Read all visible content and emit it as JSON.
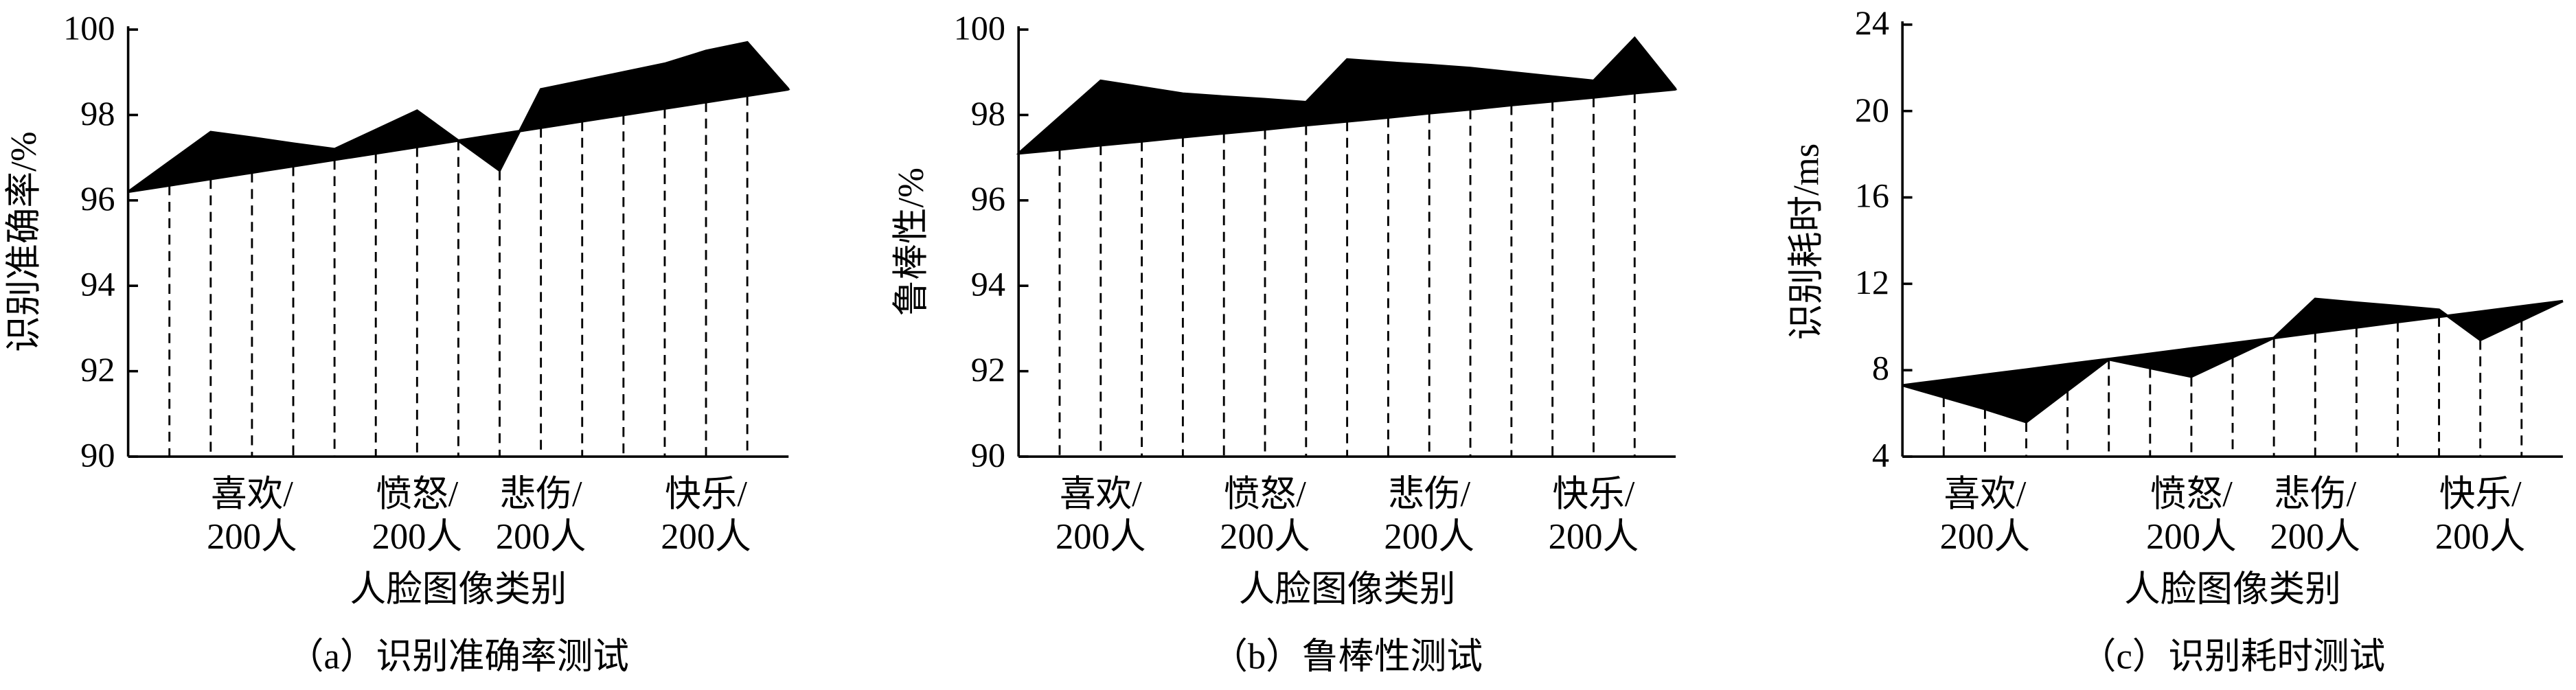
{
  "chart_data": [
    {
      "type": "area",
      "title": "（a）识别准确率测试",
      "x_label": "人脸图像类别",
      "y_label": "识别准确率/%",
      "categories": [
        null,
        null,
        null,
        "喜欢/\n200人",
        null,
        null,
        null,
        "愤怒/\n200人",
        null,
        null,
        "悲伤/\n200人",
        null,
        null,
        null,
        "快乐/\n200人",
        null,
        null
      ],
      "series": [
        {
          "color": "#000000",
          "values": [
            96.2,
            96.9,
            97.6,
            97.47,
            97.33,
            97.2,
            97.65,
            98.1,
            97.4,
            96.7,
            98.6,
            98.8,
            99.0,
            99.2,
            99.5,
            99.7,
            98.6
          ]
        },
        {
          "color": "#000000",
          "values": [
            96.2,
            96.35,
            96.5,
            96.65,
            96.8,
            96.95,
            97.1,
            97.25,
            97.4,
            97.55,
            97.7,
            97.85,
            98.0,
            98.15,
            98.3,
            98.45,
            98.6
          ]
        }
      ],
      "ylim": [
        90,
        100
      ],
      "yticks": [
        90,
        92,
        94,
        96,
        98,
        100
      ]
    },
    {
      "type": "area",
      "title": "（b）鲁棒性测试",
      "x_label": "人脸图像类别",
      "y_label": "鲁棒性/%",
      "categories": [
        null,
        null,
        "喜欢/\n200人",
        null,
        null,
        null,
        "愤怒/\n200人",
        null,
        null,
        null,
        "悲伤/\n200人",
        null,
        null,
        null,
        "快乐/\n200人",
        null,
        null
      ],
      "series": [
        {
          "color": "#000000",
          "values": [
            97.1,
            97.95,
            98.8,
            98.65,
            98.5,
            98.43,
            98.37,
            98.3,
            99.3,
            99.23,
            99.17,
            99.1,
            99.0,
            98.9,
            98.8,
            99.8,
            98.6
          ]
        },
        {
          "color": "#000000",
          "values": [
            97.1,
            97.19,
            97.29,
            97.38,
            97.48,
            97.57,
            97.66,
            97.76,
            97.85,
            97.94,
            98.04,
            98.13,
            98.23,
            98.32,
            98.41,
            98.51,
            98.6
          ]
        }
      ],
      "ylim": [
        90,
        100
      ],
      "yticks": [
        90,
        92,
        94,
        96,
        98,
        100
      ]
    },
    {
      "type": "area",
      "title": "（c）识别耗时测试",
      "x_label": "人脸图像类别",
      "y_label": "识别耗时/ms",
      "categories": [
        null,
        null,
        "喜欢/\n200人",
        null,
        null,
        null,
        null,
        "愤怒/\n200人",
        null,
        null,
        "悲伤/\n200人",
        null,
        null,
        null,
        "快乐/\n200人",
        null,
        null
      ],
      "series": [
        {
          "color": "#000000",
          "values": [
            7.3,
            6.75,
            6.2,
            5.6,
            7.05,
            8.5,
            8.1,
            7.7,
            8.6,
            9.5,
            11.3,
            11.13,
            10.97,
            10.8,
            9.4,
            10.3,
            11.2
          ]
        },
        {
          "color": "#000000",
          "values": [
            7.3,
            7.54,
            7.79,
            8.03,
            8.28,
            8.52,
            8.76,
            9.01,
            9.25,
            9.49,
            9.74,
            9.98,
            10.23,
            10.47,
            10.71,
            10.96,
            11.2
          ]
        }
      ],
      "ylim": [
        4,
        24
      ],
      "yticks": [
        4,
        8,
        12,
        16,
        20,
        24
      ]
    }
  ]
}
